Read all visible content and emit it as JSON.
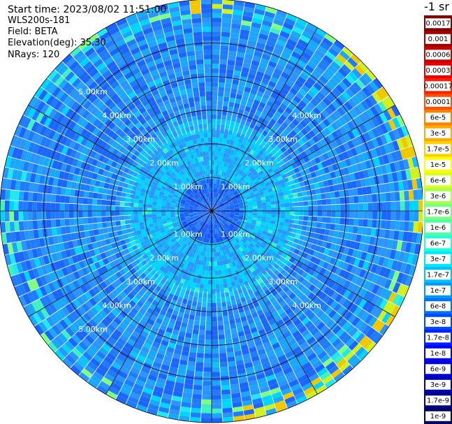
{
  "header": {
    "start_time": "Start time: 2023/08/02 11:51:00",
    "instrument": "WLS200s-181",
    "field": "Field: BETA",
    "elevation": "Elevation(deg): 35.30",
    "nrays": "NRays: 120"
  },
  "chart_data": {
    "type": "heatmap",
    "projection": "polar-ppi",
    "nrays": 120,
    "range_rings_km": [
      1,
      2,
      3,
      4,
      5
    ],
    "ring_labels": [
      "1.00km",
      "2.00km",
      "3.00km",
      "4.00km",
      "5.00km"
    ],
    "max_range_km": 6.3,
    "spoke_angles_deg": [
      0,
      30,
      60,
      90,
      120,
      150,
      180,
      210,
      240,
      270,
      300,
      330
    ],
    "colorbar": {
      "unit_label": "-1 sr",
      "ticks": [
        "0.0017",
        "0.001",
        "0.0006",
        "0.0003",
        "0.00017",
        "0.0001",
        "6e-5",
        "3e-5",
        "1.7e-5",
        "1e-5",
        "6e-6",
        "3e-6",
        "1.7e-6",
        "1e-6",
        "6e-7",
        "3e-7",
        "1.7e-7",
        "1e-7",
        "6e-8",
        "3e-8",
        "1.7e-8",
        "1e-8",
        "6e-9",
        "3e-9",
        "1.7e-9",
        "1e-9"
      ],
      "colors": [
        "#7f0000",
        "#a00000",
        "#c80000",
        "#e80000",
        "#ff2000",
        "#ff5000",
        "#ff8000",
        "#ffaa00",
        "#ffd000",
        "#ffff00",
        "#d8ff20",
        "#a8ff50",
        "#78ff80",
        "#50ffa8",
        "#20ffd8",
        "#00e8ff",
        "#00c0ff",
        "#0098ff",
        "#0070ff",
        "#0048ff",
        "#0020ff",
        "#0000ff",
        "#0000d8",
        "#0000b0",
        "#000088",
        "#000060"
      ]
    }
  }
}
